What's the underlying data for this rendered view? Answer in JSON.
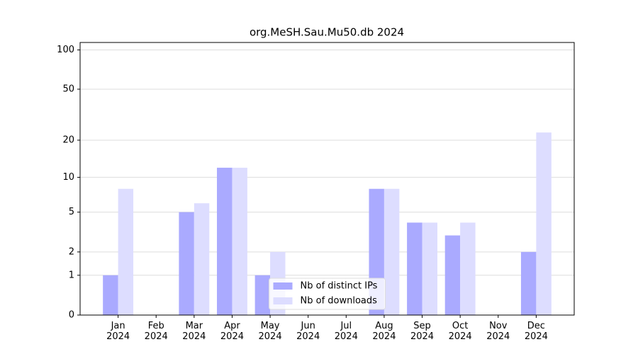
{
  "chart_data": {
    "type": "bar",
    "title": "org.MeSH.Sau.Mu50.db 2024",
    "categories": [
      "Jan\n2024",
      "Feb\n2024",
      "Mar\n2024",
      "Apr\n2024",
      "May\n2024",
      "Jun\n2024",
      "Jul\n2024",
      "Aug\n2024",
      "Sep\n2024",
      "Oct\n2024",
      "Nov\n2024",
      "Dec\n2024"
    ],
    "series": [
      {
        "name": "Nb of distinct IPs",
        "color": "#aaaaff",
        "values": [
          1,
          0,
          5,
          12,
          1,
          0,
          0,
          8,
          4,
          3,
          0,
          2
        ]
      },
      {
        "name": "Nb of downloads",
        "color": "#ddddff",
        "values": [
          8,
          0,
          6,
          12,
          2,
          0,
          0,
          8,
          4,
          4,
          0,
          23
        ]
      }
    ],
    "yscale": "log1p",
    "ylim": [
      0,
      114
    ],
    "yticks": [
      0,
      1,
      2,
      5,
      10,
      20,
      50,
      100
    ],
    "grid": true,
    "legend": "lower center"
  }
}
